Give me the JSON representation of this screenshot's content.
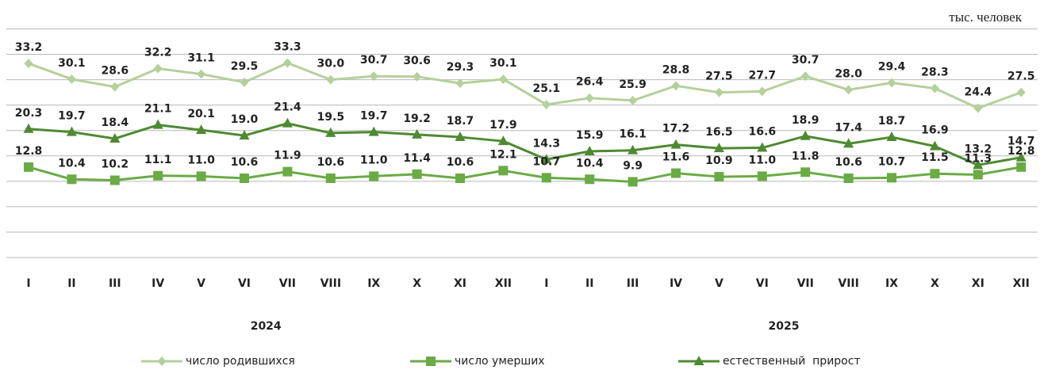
{
  "unit_label": "тыс. человек",
  "chart_data": {
    "type": "line",
    "categories": [
      "I",
      "II",
      "III",
      "IV",
      "V",
      "VI",
      "VII",
      "VIII",
      "IX",
      "X",
      "XI",
      "XII",
      "I",
      "II",
      "III",
      "IV",
      "V",
      "VI",
      "VII",
      "VIII",
      "IX",
      "X",
      "XI",
      "XII"
    ],
    "year_groups": [
      {
        "label": "2024",
        "from": 0,
        "to": 11
      },
      {
        "label": "2025",
        "from": 12,
        "to": 23
      }
    ],
    "series": [
      {
        "name": "число родившихся",
        "color": "#b5d09b",
        "marker": "diamond",
        "values": [
          33.2,
          30.1,
          28.6,
          32.2,
          31.1,
          29.5,
          33.3,
          30.0,
          30.7,
          30.6,
          29.3,
          30.1,
          25.1,
          26.4,
          25.9,
          28.8,
          27.5,
          27.7,
          30.7,
          28.0,
          29.4,
          28.3,
          24.4,
          27.5
        ]
      },
      {
        "name": "число умерших",
        "color": "#6aab45",
        "marker": "square",
        "values": [
          12.8,
          10.4,
          10.2,
          11.1,
          11.0,
          10.6,
          11.9,
          10.6,
          11.0,
          11.4,
          10.6,
          12.1,
          10.7,
          10.4,
          9.9,
          11.6,
          10.9,
          11.0,
          11.8,
          10.6,
          10.7,
          11.5,
          11.3,
          12.8
        ]
      },
      {
        "name": "естественный  прирост",
        "color": "#4e8a32",
        "marker": "triangle",
        "values": [
          20.3,
          19.7,
          18.4,
          21.1,
          20.1,
          19.0,
          21.4,
          19.5,
          19.7,
          19.2,
          18.7,
          17.9,
          14.3,
          15.9,
          16.1,
          17.2,
          16.5,
          16.6,
          18.9,
          17.4,
          18.7,
          16.9,
          13.2,
          14.7
        ]
      }
    ],
    "ylim": [
      -5,
      40
    ],
    "grid": true,
    "legend": "bottom"
  }
}
